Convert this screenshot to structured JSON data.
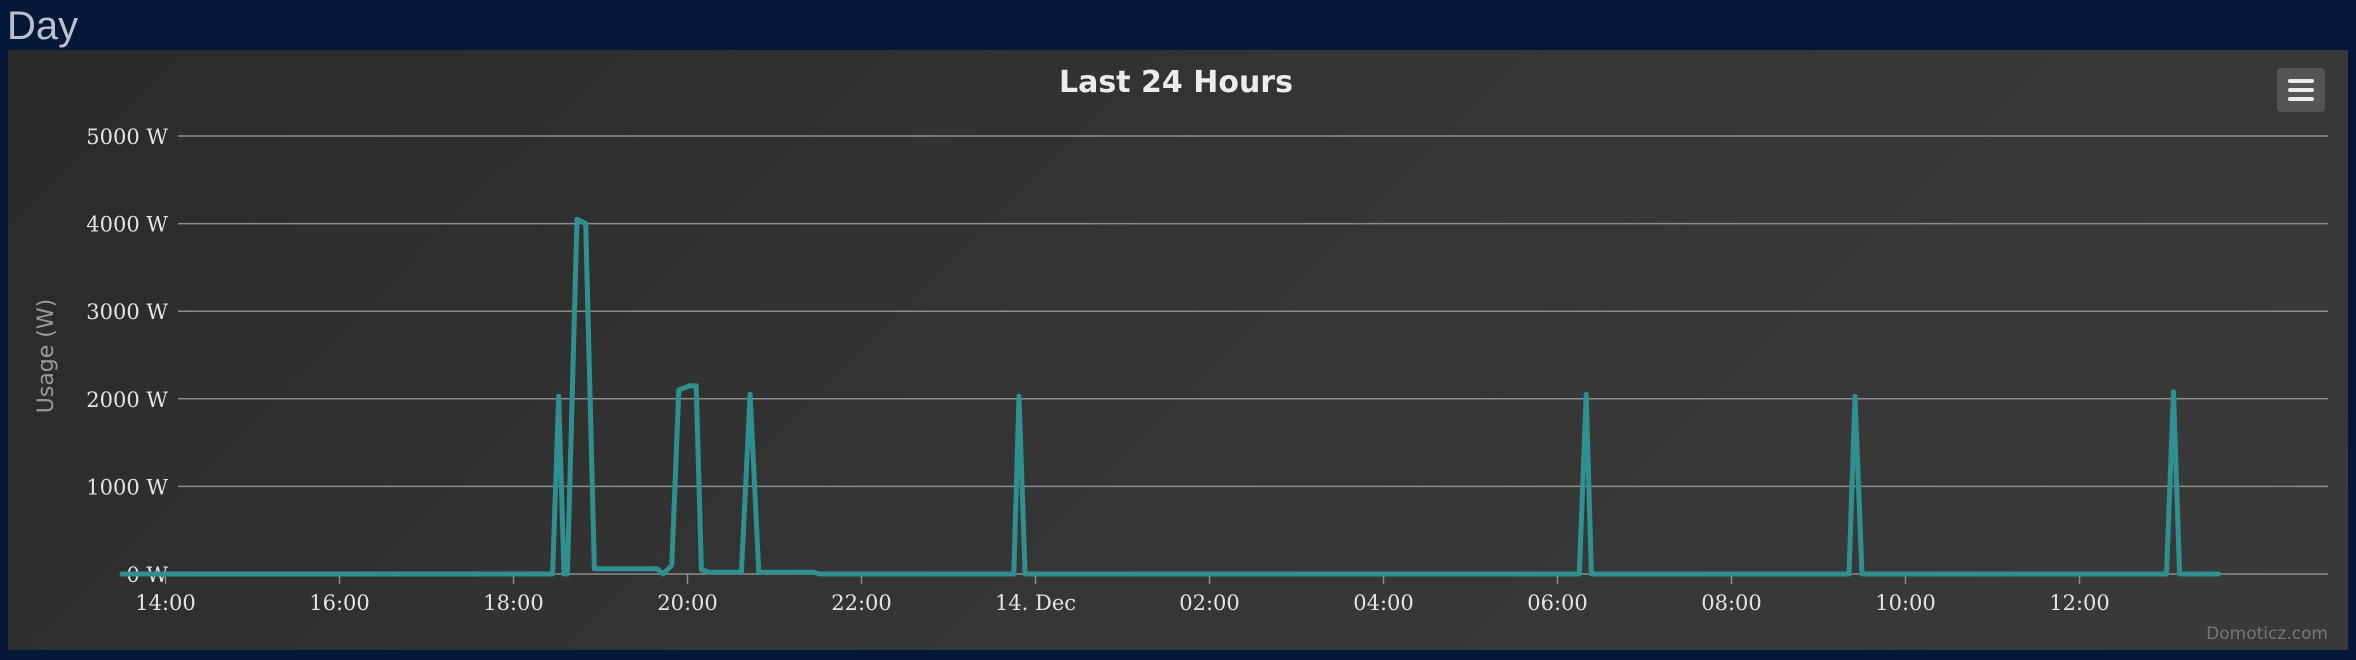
{
  "page": {
    "heading": "Day"
  },
  "chart_data": {
    "type": "line",
    "title": "Last 24 Hours",
    "xlabel": "",
    "ylabel": "Usage (W)",
    "credits": "Domoticz.com",
    "grid": true,
    "legend": "none",
    "colors": {
      "line": "#2f9090",
      "grid": "#8c8c8c",
      "title": "#ececec",
      "tick_label": "#e4e4e4",
      "ylabel": "#9a9a9a",
      "credits": "#777777"
    },
    "ylim": [
      0,
      5000
    ],
    "y_ticks": [
      {
        "value": 0,
        "label": "0 W"
      },
      {
        "value": 1000,
        "label": "1000 W"
      },
      {
        "value": 2000,
        "label": "2000 W"
      },
      {
        "value": 3000,
        "label": "3000 W"
      },
      {
        "value": 4000,
        "label": "4000 W"
      },
      {
        "value": 5000,
        "label": "5000 W"
      }
    ],
    "xlim_hours": [
      13.5,
      37.6
    ],
    "x_ticks": [
      {
        "hour": 14,
        "label": "14:00"
      },
      {
        "hour": 16,
        "label": "16:00"
      },
      {
        "hour": 18,
        "label": "18:00"
      },
      {
        "hour": 20,
        "label": "20:00"
      },
      {
        "hour": 22,
        "label": "22:00"
      },
      {
        "hour": 24,
        "label": "14. Dec"
      },
      {
        "hour": 26,
        "label": "02:00"
      },
      {
        "hour": 28,
        "label": "04:00"
      },
      {
        "hour": 30,
        "label": "06:00"
      },
      {
        "hour": 32,
        "label": "08:00"
      },
      {
        "hour": 34,
        "label": "10:00"
      },
      {
        "hour": 36,
        "label": "12:00"
      }
    ],
    "series": [
      {
        "points": [
          [
            13.5,
            0
          ],
          [
            18.45,
            0
          ],
          [
            18.52,
            2030
          ],
          [
            18.58,
            0
          ],
          [
            18.62,
            0
          ],
          [
            18.73,
            4050
          ],
          [
            18.83,
            4000
          ],
          [
            18.93,
            60
          ],
          [
            19.65,
            60
          ],
          [
            19.72,
            0
          ],
          [
            19.82,
            100
          ],
          [
            19.9,
            2100
          ],
          [
            20.03,
            2150
          ],
          [
            20.1,
            2150
          ],
          [
            20.16,
            50
          ],
          [
            20.25,
            20
          ],
          [
            20.62,
            20
          ],
          [
            20.72,
            2050
          ],
          [
            20.82,
            20
          ],
          [
            21.45,
            20
          ],
          [
            21.52,
            0
          ],
          [
            23.75,
            0
          ],
          [
            23.81,
            2030
          ],
          [
            23.88,
            0
          ],
          [
            30.25,
            0
          ],
          [
            30.33,
            2050
          ],
          [
            30.39,
            0
          ],
          [
            33.35,
            0
          ],
          [
            33.42,
            2030
          ],
          [
            33.5,
            0
          ],
          [
            37.0,
            0
          ],
          [
            37.08,
            2080
          ],
          [
            37.15,
            0
          ],
          [
            37.6,
            0
          ]
        ]
      }
    ]
  }
}
